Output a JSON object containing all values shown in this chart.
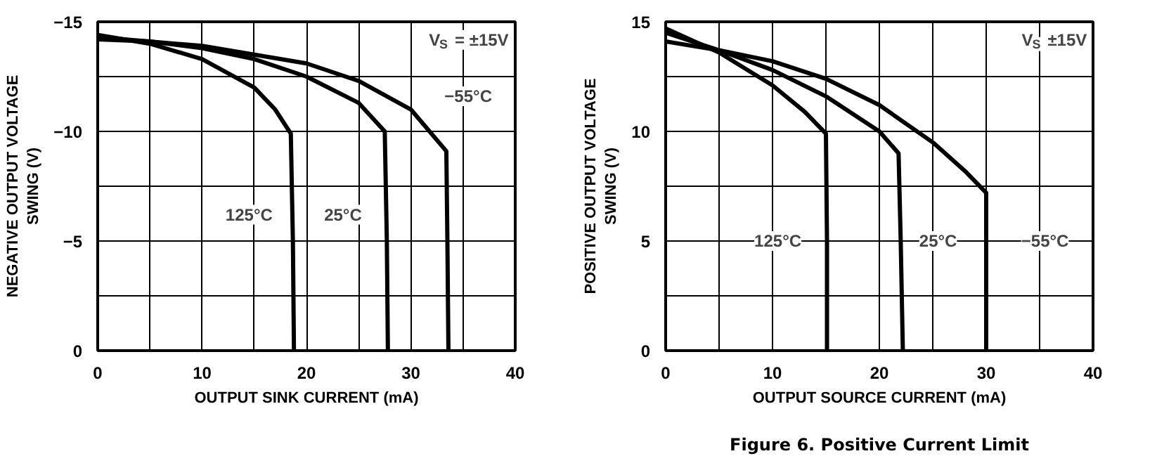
{
  "chart_data": [
    {
      "type": "line",
      "xlabel": "OUTPUT SINK CURRENT (mA)",
      "ylabel": "NEGATIVE OUTPUT VOLTAGE\nSWING (V)",
      "xlim": [
        0,
        40
      ],
      "ylim": [
        0,
        -15
      ],
      "xticks": [
        0,
        {
          "value": 5,
          "label": null
        },
        10,
        {
          "value": 15,
          "label": null
        },
        20,
        {
          "value": 25,
          "label": null
        },
        30,
        {
          "value": 35,
          "label": null
        },
        40
      ],
      "yticks": [
        {
          "value": 0,
          "label": "0"
        },
        {
          "value": -2.5,
          "label": null
        },
        {
          "value": -5,
          "label": "−5"
        },
        {
          "value": -7.5,
          "label": null
        },
        {
          "value": -10,
          "label": "−10"
        },
        {
          "value": -12.5,
          "label": null
        },
        {
          "value": -15,
          "label": "−15"
        }
      ],
      "grid": true,
      "line_style": "solid",
      "series": [
        {
          "color": "#000000",
          "x": [
            0,
            5,
            10,
            15,
            17,
            18.5,
            18.7,
            18.8
          ],
          "values": [
            -14.4,
            -14.0,
            -13.3,
            -12.0,
            -11.0,
            -9.9,
            -5,
            0
          ]
        },
        {
          "color": "#000000",
          "x": [
            0,
            5,
            10,
            15,
            20,
            25,
            27.5,
            27.7,
            27.8
          ],
          "values": [
            -14.2,
            -14.1,
            -13.8,
            -13.3,
            -12.5,
            -11.3,
            -10.0,
            -5,
            0
          ]
        },
        {
          "color": "#000000",
          "x": [
            0,
            10,
            20,
            25,
            30,
            33.4,
            33.5,
            33.6
          ],
          "values": [
            -14.3,
            -13.9,
            -13.1,
            -12.3,
            -11.0,
            -9.1,
            -5,
            0
          ]
        }
      ],
      "annotations": [
        "V$_{S}$ = ±15V",
        {
          "text": "125°C",
          "x": 14.5,
          "y": -6.2
        },
        {
          "text": "25°C",
          "x": 23.5,
          "y": -6.2
        },
        {
          "text": "−55°C",
          "x": 35.5,
          "y": -11.6
        }
      ]
    },
    {
      "type": "line",
      "xlabel": "OUTPUT SOURCE CURRENT (mA)",
      "ylabel": "POSITIVE OUTPUT VOLTAGE\nSWING (V)",
      "xlim": [
        0,
        40
      ],
      "ylim": [
        0,
        15
      ],
      "xticks": [
        0,
        {
          "value": 5,
          "label": null
        },
        10,
        {
          "value": 15,
          "label": null
        },
        20,
        {
          "value": 25,
          "label": null
        },
        30,
        {
          "value": 35,
          "label": null
        },
        40
      ],
      "yticks": [
        0,
        {
          "value": 2.5,
          "label": null
        },
        5,
        {
          "value": 7.5,
          "label": null
        },
        10,
        {
          "value": 12.5,
          "label": null
        },
        15
      ],
      "grid": true,
      "line_style": "solid",
      "series": [
        {
          "color": "#000000",
          "x": [
            0,
            5,
            10,
            13,
            15,
            15.1,
            15.1
          ],
          "values": [
            14.7,
            13.6,
            12.1,
            10.9,
            9.9,
            5,
            0
          ]
        },
        {
          "color": "#000000",
          "x": [
            0,
            5,
            10,
            15,
            20,
            21.8,
            22.0,
            22.2
          ],
          "values": [
            14.5,
            13.7,
            12.8,
            11.6,
            10.0,
            9.0,
            5,
            0
          ]
        },
        {
          "color": "#000000",
          "x": [
            0,
            5,
            10,
            15,
            20,
            25,
            28,
            30,
            30,
            30
          ],
          "values": [
            14.1,
            13.7,
            13.2,
            12.4,
            11.2,
            9.5,
            8.2,
            7.2,
            5,
            0
          ]
        }
      ],
      "annotations": [
        "V$_{S}$ ±15V",
        "Figure 6. Positive Current Limit",
        {
          "text": "125°C",
          "x": 10.5,
          "y": 5
        },
        {
          "text": "25°C",
          "x": 25.5,
          "y": 5
        },
        {
          "text": "−55°C",
          "x": 35.5,
          "y": 5
        }
      ]
    }
  ]
}
